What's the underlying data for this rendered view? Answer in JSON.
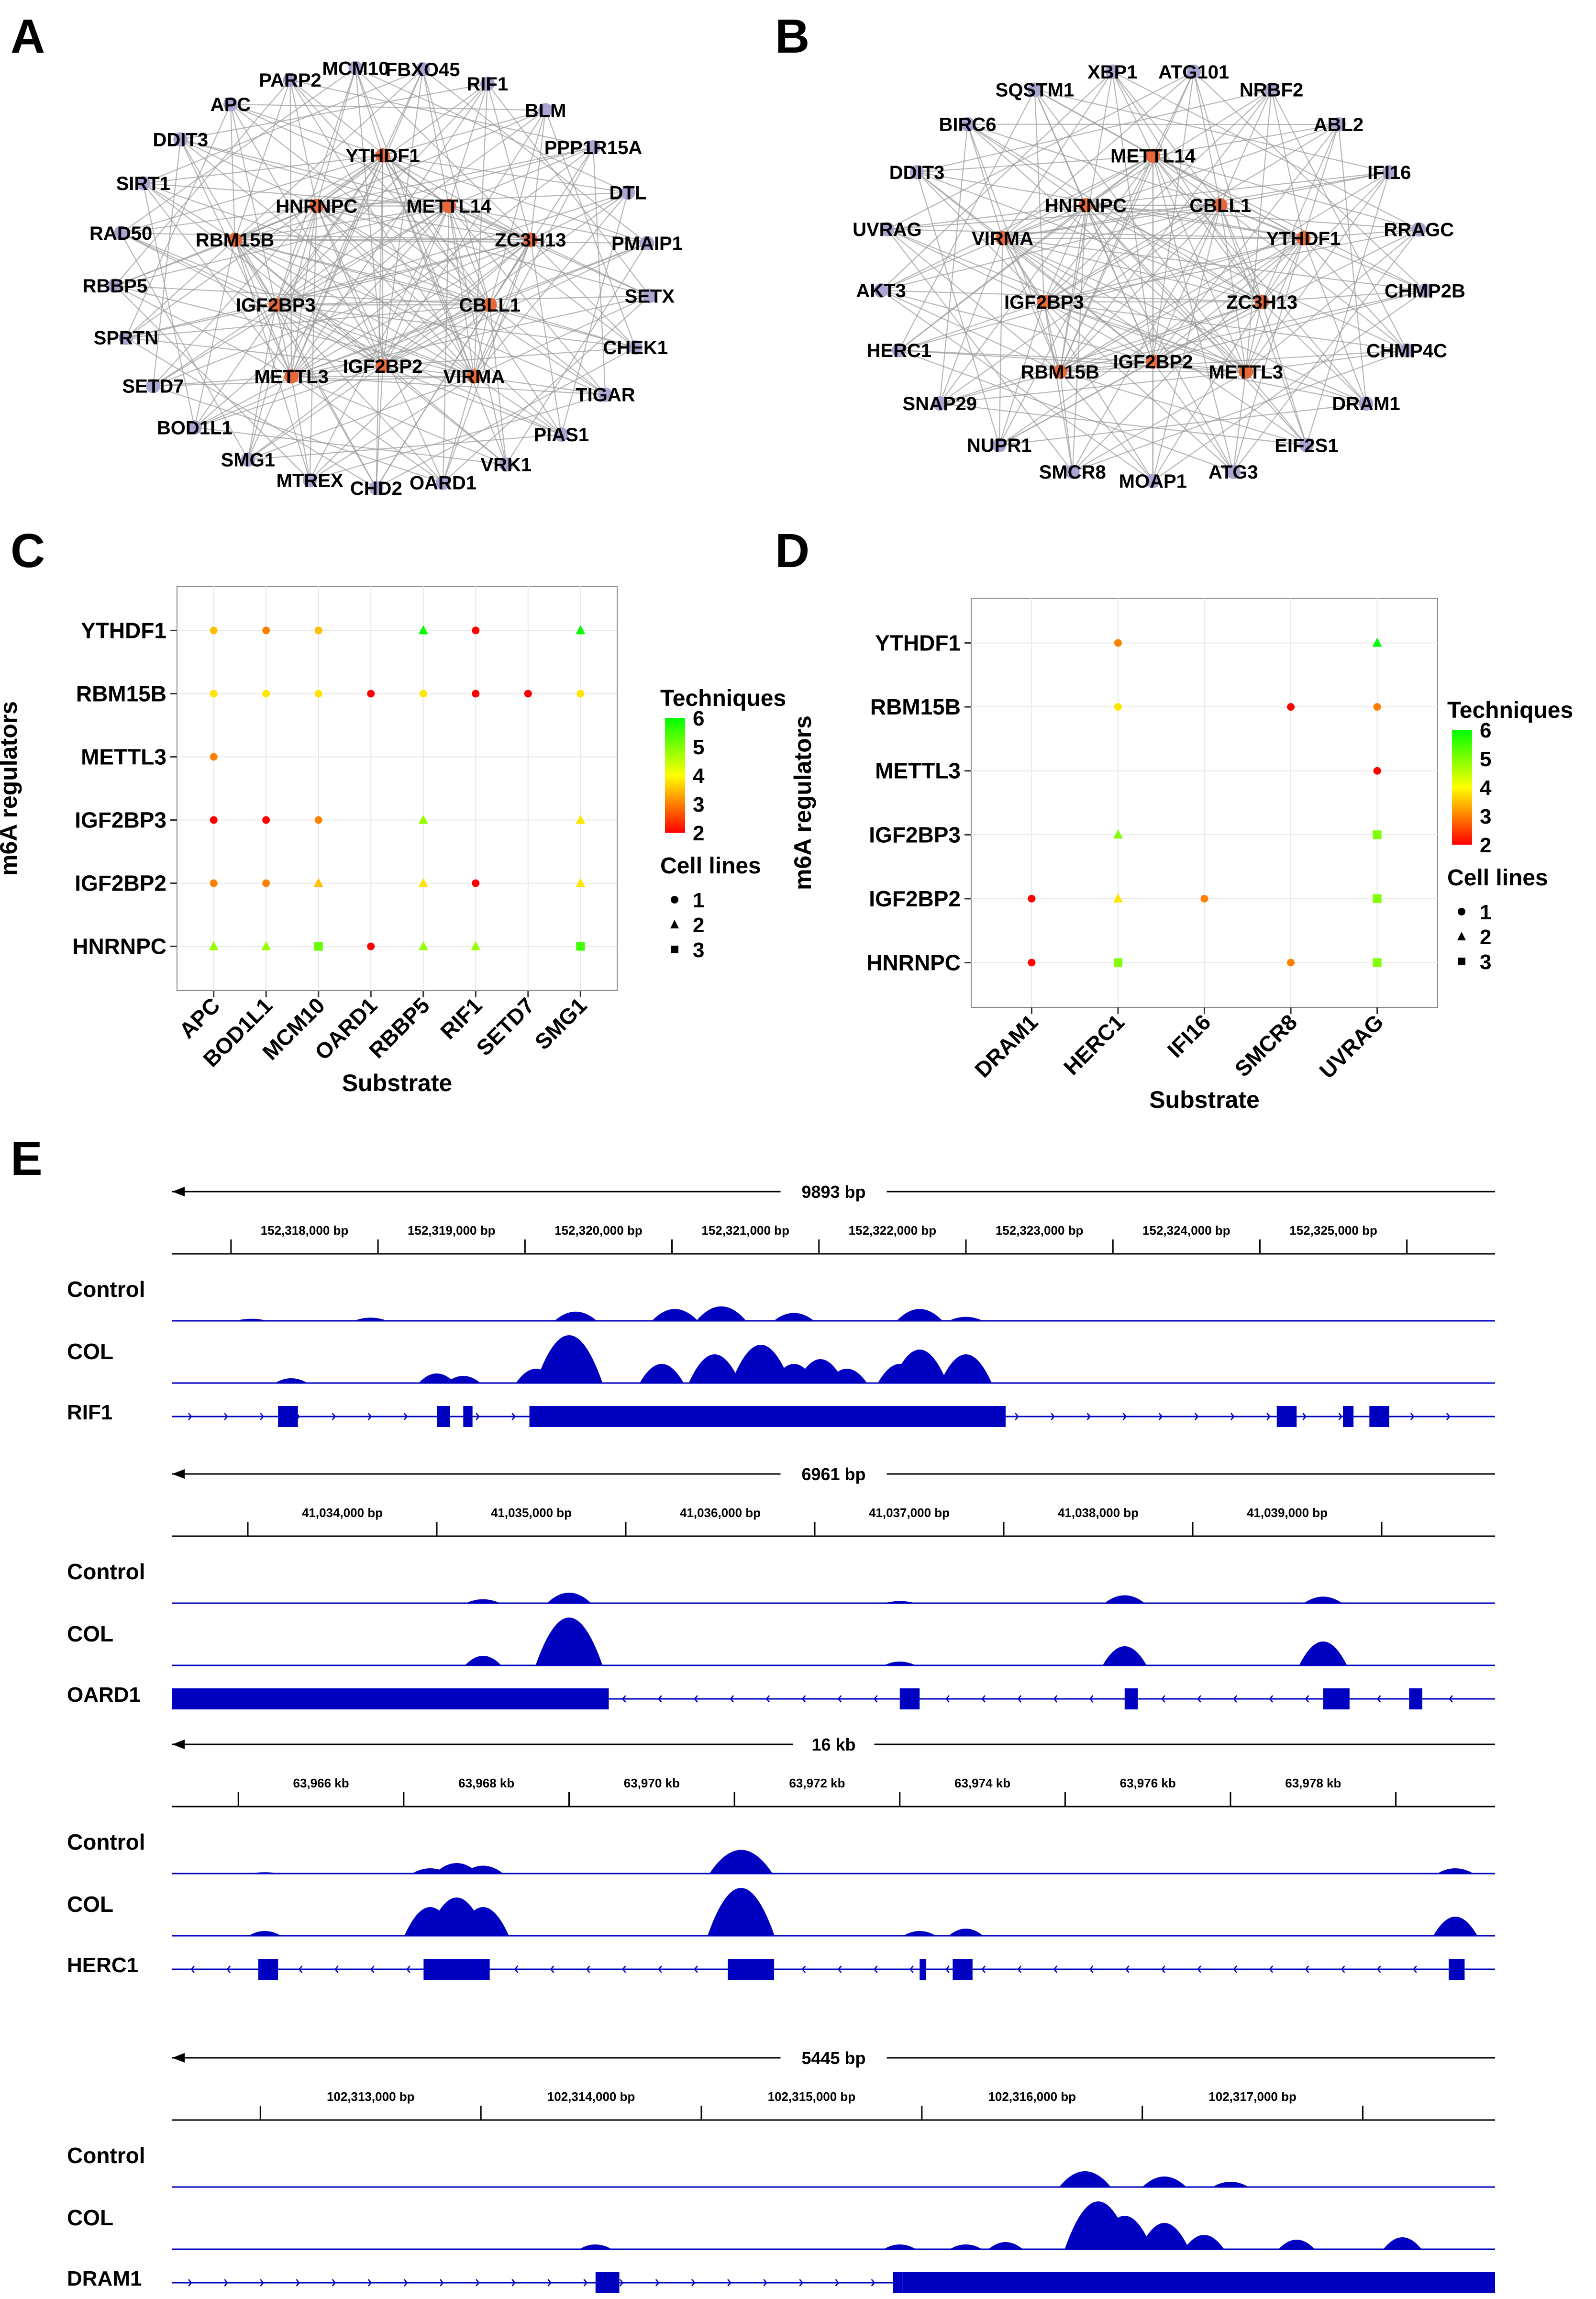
{
  "panel_labels": {
    "a": "A",
    "b": "B",
    "c": "C",
    "d": "D",
    "e": "E"
  },
  "colors": {
    "ring_node": "#a9a6d4",
    "hub_node": "#e8683a",
    "edge": "#9a9a9a",
    "track": "#0000c0",
    "grid": "#e8e8e8"
  },
  "chart_data": [
    {
      "type": "network",
      "panel": "A",
      "hub_nodes": [
        "YTHDF1",
        "METTL14",
        "ZC3H13",
        "CBLL1",
        "VIRMA",
        "IGF2BP2",
        "METTL3",
        "IGF2BP3",
        "RBM15B",
        "HNRNPC"
      ],
      "ring_nodes": [
        "FBXO45",
        "RIF1",
        "BLM",
        "PPP1R15A",
        "DTL",
        "PMAIP1",
        "SETX",
        "CHEK1",
        "TIGAR",
        "PIAS1",
        "VRK1",
        "OARD1",
        "CHD2",
        "MTREX",
        "SMG1",
        "BOD1L1",
        "SETD7",
        "SPRTN",
        "RBBP5",
        "RAD50",
        "SIRT1",
        "DDIT3",
        "APC",
        "PARP2",
        "MCM10"
      ]
    },
    {
      "type": "network",
      "panel": "B",
      "hub_nodes": [
        "METTL14",
        "CBLL1",
        "YTHDF1",
        "ZC3H13",
        "METTL3",
        "IGF2BP2",
        "RBM15B",
        "IGF2BP3",
        "VIRMA",
        "HNRNPC"
      ],
      "ring_nodes": [
        "ATG101",
        "NRBF2",
        "ABL2",
        "IFI16",
        "RRAGC",
        "CHMP2B",
        "CHMP4C",
        "DRAM1",
        "EIF2S1",
        "ATG3",
        "MOAP1",
        "SMCR8",
        "NUPR1",
        "SNAP29",
        "HERC1",
        "AKT3",
        "UVRAG",
        "DDIT3",
        "BIRC6",
        "SQSTM1",
        "XBP1"
      ]
    },
    {
      "type": "scatter",
      "panel": "C",
      "xlabel": "Substrate",
      "ylabel": "m6A regulators",
      "x_categories": [
        "APC",
        "BOD1L1",
        "MCM10",
        "OARD1",
        "RBBP5",
        "RIF1",
        "SETD7",
        "SMG1"
      ],
      "y_categories": [
        "HNRNPC",
        "IGF2BP2",
        "IGF2BP3",
        "METTL3",
        "RBM15B",
        "YTHDF1"
      ],
      "legend": {
        "color_title": "Techniques",
        "color_ticks": [
          "6",
          "5",
          "4",
          "3",
          "2"
        ],
        "shape_title": "Cell lines",
        "shape_ticks": [
          "1",
          "2",
          "3"
        ]
      },
      "points": [
        {
          "x": "APC",
          "y": "YTHDF1",
          "techniques": 3.5,
          "cell_lines": 1
        },
        {
          "x": "BOD1L1",
          "y": "YTHDF1",
          "techniques": 3,
          "cell_lines": 1
        },
        {
          "x": "MCM10",
          "y": "YTHDF1",
          "techniques": 3.5,
          "cell_lines": 1
        },
        {
          "x": "RBBP5",
          "y": "YTHDF1",
          "techniques": 6,
          "cell_lines": 2
        },
        {
          "x": "RIF1",
          "y": "YTHDF1",
          "techniques": 2,
          "cell_lines": 1
        },
        {
          "x": "SMG1",
          "y": "YTHDF1",
          "techniques": 6,
          "cell_lines": 2
        },
        {
          "x": "APC",
          "y": "RBM15B",
          "techniques": 3.8,
          "cell_lines": 1
        },
        {
          "x": "BOD1L1",
          "y": "RBM15B",
          "techniques": 3.8,
          "cell_lines": 1
        },
        {
          "x": "MCM10",
          "y": "RBM15B",
          "techniques": 3.8,
          "cell_lines": 1
        },
        {
          "x": "OARD1",
          "y": "RBM15B",
          "techniques": 2,
          "cell_lines": 1
        },
        {
          "x": "RBBP5",
          "y": "RBM15B",
          "techniques": 3.8,
          "cell_lines": 1
        },
        {
          "x": "RIF1",
          "y": "RBM15B",
          "techniques": 2,
          "cell_lines": 1
        },
        {
          "x": "SETD7",
          "y": "RBM15B",
          "techniques": 2,
          "cell_lines": 1
        },
        {
          "x": "SMG1",
          "y": "RBM15B",
          "techniques": 3.8,
          "cell_lines": 1
        },
        {
          "x": "APC",
          "y": "METTL3",
          "techniques": 3,
          "cell_lines": 1
        },
        {
          "x": "APC",
          "y": "IGF2BP3",
          "techniques": 2,
          "cell_lines": 1
        },
        {
          "x": "BOD1L1",
          "y": "IGF2BP3",
          "techniques": 2,
          "cell_lines": 1
        },
        {
          "x": "MCM10",
          "y": "IGF2BP3",
          "techniques": 3,
          "cell_lines": 1
        },
        {
          "x": "RBBP5",
          "y": "IGF2BP3",
          "techniques": 4.8,
          "cell_lines": 2
        },
        {
          "x": "SMG1",
          "y": "IGF2BP3",
          "techniques": 3.8,
          "cell_lines": 2
        },
        {
          "x": "APC",
          "y": "IGF2BP2",
          "techniques": 3,
          "cell_lines": 1
        },
        {
          "x": "BOD1L1",
          "y": "IGF2BP2",
          "techniques": 3,
          "cell_lines": 1
        },
        {
          "x": "MCM10",
          "y": "IGF2BP2",
          "techniques": 3.5,
          "cell_lines": 2
        },
        {
          "x": "RBBP5",
          "y": "IGF2BP2",
          "techniques": 3.8,
          "cell_lines": 2
        },
        {
          "x": "RIF1",
          "y": "IGF2BP2",
          "techniques": 2,
          "cell_lines": 1
        },
        {
          "x": "SMG1",
          "y": "IGF2BP2",
          "techniques": 3.8,
          "cell_lines": 2
        },
        {
          "x": "APC",
          "y": "HNRNPC",
          "techniques": 4.8,
          "cell_lines": 2
        },
        {
          "x": "BOD1L1",
          "y": "HNRNPC",
          "techniques": 4.8,
          "cell_lines": 2
        },
        {
          "x": "MCM10",
          "y": "HNRNPC",
          "techniques": 5.2,
          "cell_lines": 3
        },
        {
          "x": "OARD1",
          "y": "HNRNPC",
          "techniques": 2,
          "cell_lines": 1
        },
        {
          "x": "RBBP5",
          "y": "HNRNPC",
          "techniques": 4.8,
          "cell_lines": 2
        },
        {
          "x": "RIF1",
          "y": "HNRNPC",
          "techniques": 4.8,
          "cell_lines": 2
        },
        {
          "x": "SMG1",
          "y": "HNRNPC",
          "techniques": 5.5,
          "cell_lines": 3
        }
      ]
    },
    {
      "type": "scatter",
      "panel": "D",
      "xlabel": "Substrate",
      "ylabel": "m6A regulators",
      "x_categories": [
        "DRAM1",
        "HERC1",
        "IFI16",
        "SMCR8",
        "UVRAG"
      ],
      "y_categories": [
        "HNRNPC",
        "IGF2BP2",
        "IGF2BP3",
        "METTL3",
        "RBM15B",
        "YTHDF1"
      ],
      "legend": {
        "color_title": "Techniques",
        "color_ticks": [
          "6",
          "5",
          "4",
          "3",
          "2"
        ],
        "shape_title": "Cell lines",
        "shape_ticks": [
          "1",
          "2",
          "3"
        ]
      },
      "points": [
        {
          "x": "HERC1",
          "y": "YTHDF1",
          "techniques": 3,
          "cell_lines": 1
        },
        {
          "x": "UVRAG",
          "y": "YTHDF1",
          "techniques": 6,
          "cell_lines": 2
        },
        {
          "x": "HERC1",
          "y": "RBM15B",
          "techniques": 3.8,
          "cell_lines": 1
        },
        {
          "x": "SMCR8",
          "y": "RBM15B",
          "techniques": 2,
          "cell_lines": 1
        },
        {
          "x": "UVRAG",
          "y": "RBM15B",
          "techniques": 3,
          "cell_lines": 1
        },
        {
          "x": "UVRAG",
          "y": "METTL3",
          "techniques": 2,
          "cell_lines": 1
        },
        {
          "x": "HERC1",
          "y": "IGF2BP3",
          "techniques": 5,
          "cell_lines": 2
        },
        {
          "x": "UVRAG",
          "y": "IGF2BP3",
          "techniques": 5,
          "cell_lines": 3
        },
        {
          "x": "DRAM1",
          "y": "IGF2BP2",
          "techniques": 2,
          "cell_lines": 1
        },
        {
          "x": "HERC1",
          "y": "IGF2BP2",
          "techniques": 3.8,
          "cell_lines": 2
        },
        {
          "x": "IFI16",
          "y": "IGF2BP2",
          "techniques": 3,
          "cell_lines": 1
        },
        {
          "x": "UVRAG",
          "y": "IGF2BP2",
          "techniques": 5,
          "cell_lines": 3
        },
        {
          "x": "DRAM1",
          "y": "HNRNPC",
          "techniques": 2,
          "cell_lines": 1
        },
        {
          "x": "HERC1",
          "y": "HNRNPC",
          "techniques": 5,
          "cell_lines": 3
        },
        {
          "x": "SMCR8",
          "y": "HNRNPC",
          "techniques": 3,
          "cell_lines": 1
        },
        {
          "x": "UVRAG",
          "y": "HNRNPC",
          "techniques": 5,
          "cell_lines": 3
        }
      ]
    },
    {
      "type": "genome_tracks",
      "panel": "E",
      "loci": [
        {
          "gene": "RIF1",
          "span_label": "9893 bp",
          "ticks": [
            "152,318,000 bp",
            "152,319,000 bp",
            "152,320,000 bp",
            "152,321,000 bp",
            "152,322,000 bp",
            "152,323,000 bp",
            "152,324,000 bp",
            "152,325,000 bp"
          ],
          "track_labels": [
            "Control",
            "COL"
          ],
          "strand": "+",
          "control_peaks": [
            [
              0.06,
              0.08
            ],
            [
              0.15,
              0.12
            ],
            [
              0.305,
              0.35
            ],
            [
              0.38,
              0.45
            ],
            [
              0.415,
              0.55
            ],
            [
              0.47,
              0.3
            ],
            [
              0.565,
              0.45
            ],
            [
              0.6,
              0.15
            ]
          ],
          "col_peaks": [
            [
              0.09,
              0.1
            ],
            [
              0.2,
              0.2
            ],
            [
              0.22,
              0.15
            ],
            [
              0.275,
              0.3
            ],
            [
              0.3,
              1.0
            ],
            [
              0.37,
              0.4
            ],
            [
              0.41,
              0.6
            ],
            [
              0.445,
              0.8
            ],
            [
              0.47,
              0.4
            ],
            [
              0.49,
              0.5
            ],
            [
              0.51,
              0.3
            ],
            [
              0.55,
              0.4
            ],
            [
              0.565,
              0.7
            ],
            [
              0.6,
              0.6
            ]
          ],
          "exons": [
            [
              0.08,
              0.095
            ],
            [
              0.2,
              0.21
            ],
            [
              0.22,
              0.227
            ],
            [
              0.27,
              0.63
            ],
            [
              0.835,
              0.85
            ],
            [
              0.885,
              0.893
            ],
            [
              0.905,
              0.92
            ]
          ]
        },
        {
          "gene": "OARD1",
          "span_label": "6961 bp",
          "ticks": [
            "41,034,000 bp",
            "41,035,000 bp",
            "41,036,000 bp",
            "41,037,000 bp",
            "41,038,000 bp",
            "41,039,000 bp"
          ],
          "track_labels": [
            "Control",
            "COL"
          ],
          "strand": "-",
          "control_peaks": [
            [
              0.235,
              0.15
            ],
            [
              0.3,
              0.4
            ],
            [
              0.55,
              0.08
            ],
            [
              0.72,
              0.3
            ],
            [
              0.87,
              0.25
            ]
          ],
          "col_peaks": [
            [
              0.235,
              0.2
            ],
            [
              0.3,
              1.0
            ],
            [
              0.55,
              0.08
            ],
            [
              0.72,
              0.4
            ],
            [
              0.87,
              0.5
            ]
          ],
          "exons": [
            [
              0.0,
              0.33
            ],
            [
              0.55,
              0.565
            ],
            [
              0.72,
              0.73
            ],
            [
              0.87,
              0.89
            ],
            [
              0.935,
              0.945
            ]
          ]
        },
        {
          "gene": "HERC1",
          "span_label": "16 kb",
          "ticks": [
            "63,966 kb",
            "63,968 kb",
            "63,970 kb",
            "63,972 kb",
            "63,974 kb",
            "63,976 kb",
            "63,978 kb"
          ],
          "track_labels": [
            "Control",
            "COL"
          ],
          "strand": "-",
          "control_peaks": [
            [
              0.07,
              0.05
            ],
            [
              0.195,
              0.2
            ],
            [
              0.215,
              0.4
            ],
            [
              0.235,
              0.3
            ],
            [
              0.43,
              0.9
            ],
            [
              0.97,
              0.2
            ]
          ],
          "col_peaks": [
            [
              0.07,
              0.1
            ],
            [
              0.195,
              0.6
            ],
            [
              0.215,
              0.8
            ],
            [
              0.235,
              0.6
            ],
            [
              0.43,
              1.0
            ],
            [
              0.565,
              0.1
            ],
            [
              0.6,
              0.15
            ],
            [
              0.97,
              0.4
            ]
          ],
          "exons": [
            [
              0.065,
              0.08
            ],
            [
              0.19,
              0.24
            ],
            [
              0.42,
              0.455
            ],
            [
              0.565,
              0.57
            ],
            [
              0.59,
              0.605
            ],
            [
              0.965,
              0.977
            ]
          ]
        },
        {
          "gene": "DRAM1",
          "span_label": "5445 bp",
          "ticks": [
            "102,313,000 bp",
            "102,314,000 bp",
            "102,315,000 bp",
            "102,316,000 bp",
            "102,317,000 bp"
          ],
          "track_labels": [
            "Control",
            "COL"
          ],
          "strand": "+",
          "control_peaks": [
            [
              0.69,
              0.6
            ],
            [
              0.75,
              0.4
            ],
            [
              0.8,
              0.2
            ]
          ],
          "col_peaks": [
            [
              0.32,
              0.1
            ],
            [
              0.55,
              0.1
            ],
            [
              0.6,
              0.1
            ],
            [
              0.63,
              0.15
            ],
            [
              0.7,
              1.0
            ],
            [
              0.72,
              0.7
            ],
            [
              0.75,
              0.55
            ],
            [
              0.78,
              0.3
            ],
            [
              0.85,
              0.2
            ],
            [
              0.93,
              0.25
            ]
          ],
          "exons": [
            [
              0.32,
              0.338
            ],
            [
              0.545,
              0.552
            ],
            [
              0.552,
              1.0
            ]
          ]
        }
      ]
    }
  ]
}
